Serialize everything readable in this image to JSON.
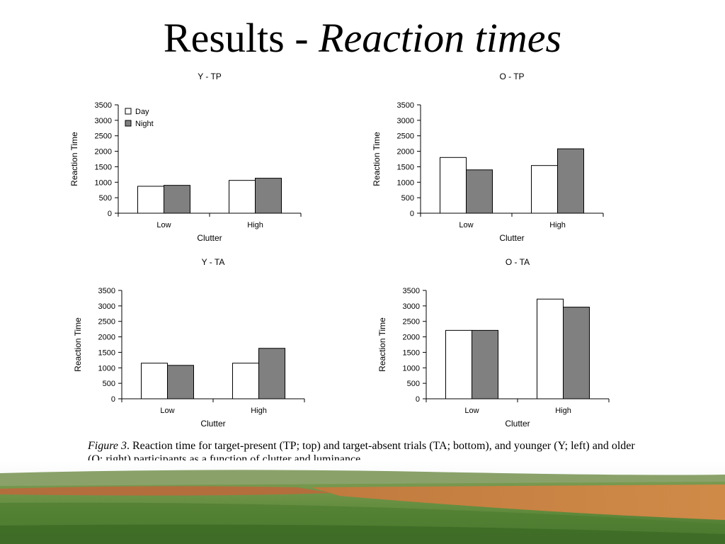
{
  "slide": {
    "title_main": "Results - ",
    "title_italic": "Reaction times"
  },
  "caption": {
    "figure_label": "Figure 3",
    "text": ". Reaction time for target-present (TP; top) and target-absent trials (TA; bottom), and younger (Y; left) and older (O; right) participants as a function of clutter and luminance."
  },
  "chart_data": [
    {
      "type": "bar",
      "title": "Y - TP",
      "xlabel": "Clutter",
      "ylabel": "Reaction Time",
      "categories": [
        "Low",
        "High"
      ],
      "series": [
        {
          "name": "Day",
          "values": [
            870,
            1060
          ]
        },
        {
          "name": "Night",
          "values": [
            900,
            1130
          ]
        }
      ],
      "ylim": [
        0,
        3500
      ],
      "yticks": [
        0,
        500,
        1000,
        1500,
        2000,
        2500,
        3000,
        3500
      ],
      "legend": "top-left",
      "grid": false,
      "colors": {
        "Day": "#ffffff",
        "Night": "#808080"
      }
    },
    {
      "type": "bar",
      "title": "O - TP",
      "xlabel": "Clutter",
      "ylabel": "Reaction Time",
      "categories": [
        "Low",
        "High"
      ],
      "series": [
        {
          "name": "Day",
          "values": [
            1800,
            1540
          ]
        },
        {
          "name": "Night",
          "values": [
            1400,
            2080
          ]
        }
      ],
      "ylim": [
        0,
        3500
      ],
      "yticks": [
        0,
        500,
        1000,
        1500,
        2000,
        2500,
        3000,
        3500
      ],
      "legend": "none",
      "grid": false,
      "colors": {
        "Day": "#ffffff",
        "Night": "#808080"
      }
    },
    {
      "type": "bar",
      "title": "Y - TA",
      "xlabel": "Clutter",
      "ylabel": "Reaction Time",
      "categories": [
        "Low",
        "High"
      ],
      "series": [
        {
          "name": "Day",
          "values": [
            1150,
            1150
          ]
        },
        {
          "name": "Night",
          "values": [
            1080,
            1630
          ]
        }
      ],
      "ylim": [
        0,
        3500
      ],
      "yticks": [
        0,
        500,
        1000,
        1500,
        2000,
        2500,
        3000,
        3500
      ],
      "legend": "none",
      "grid": false,
      "colors": {
        "Day": "#ffffff",
        "Night": "#808080"
      }
    },
    {
      "type": "bar",
      "title": "O - TA",
      "xlabel": "Clutter",
      "ylabel": "Reaction Time",
      "categories": [
        "Low",
        "High"
      ],
      "series": [
        {
          "name": "Day",
          "values": [
            2210,
            3220
          ]
        },
        {
          "name": "Night",
          "values": [
            2210,
            2960
          ]
        }
      ],
      "ylim": [
        0,
        3500
      ],
      "yticks": [
        0,
        500,
        1000,
        1500,
        2000,
        2500,
        3000,
        3500
      ],
      "legend": "none",
      "grid": false,
      "colors": {
        "Day": "#ffffff",
        "Night": "#808080"
      }
    }
  ],
  "background": {
    "image": "farm-field-landscape",
    "colors": {
      "sky": "#e9eef0",
      "grass": "#5f8a3c",
      "soil": "#b8662c"
    }
  }
}
